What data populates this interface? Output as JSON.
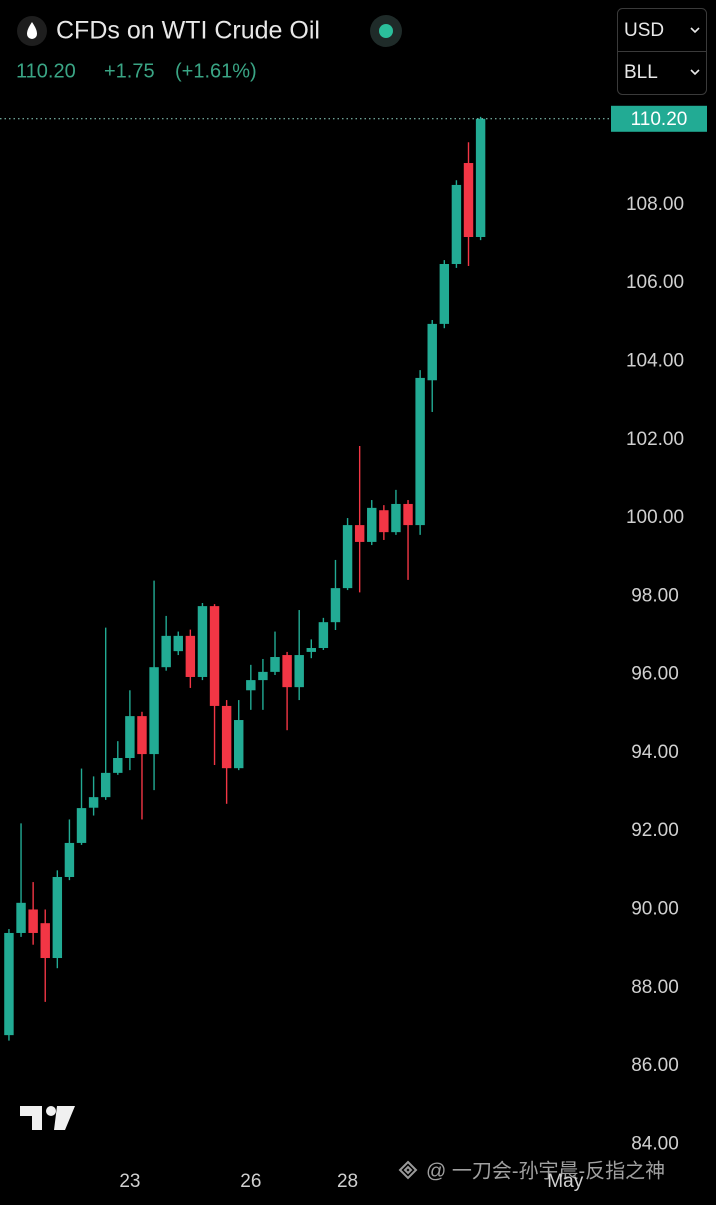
{
  "chart_data": {
    "type": "candlestick",
    "title": "CFDs on WTI Crude Oil",
    "price": "110.20",
    "change": "+1.75",
    "change_percent": "(+1.61%)",
    "currency": "USD",
    "unit": "BLL",
    "watermark": "@ 一刀会-孙宇晨-反指之神",
    "last_price": {
      "value": 110.2,
      "label": "110.20"
    },
    "up_color": "#22ab94",
    "down_color": "#f23645",
    "open": [
      86.79,
      89.4,
      90.0,
      89.65,
      88.76,
      90.83,
      91.7,
      92.6,
      92.87,
      93.49,
      93.87,
      94.94,
      93.97,
      96.19,
      96.6,
      96.99,
      95.94,
      97.75,
      95.2,
      93.61,
      95.6,
      95.86,
      96.07,
      96.5,
      95.68,
      96.58,
      96.68,
      97.34,
      98.21,
      99.82,
      99.39,
      100.2,
      99.64,
      100.36,
      99.82,
      103.52,
      104.96,
      106.49,
      109.07,
      107.18
    ],
    "high": [
      89.5,
      92.2,
      90.7,
      90.0,
      91.0,
      92.3,
      93.6,
      93.4,
      97.2,
      94.3,
      95.6,
      95.05,
      98.4,
      97.5,
      97.1,
      97.15,
      97.83,
      97.8,
      95.35,
      95.35,
      96.25,
      96.4,
      97.1,
      96.58,
      97.65,
      96.9,
      97.45,
      98.93,
      100.0,
      101.84,
      100.46,
      100.33,
      100.72,
      100.46,
      103.78,
      105.06,
      106.59,
      108.63,
      109.6,
      110.25
    ],
    "low": [
      86.65,
      89.3,
      89.1,
      87.64,
      88.5,
      90.75,
      91.65,
      92.4,
      92.8,
      93.44,
      93.56,
      92.3,
      93.05,
      96.1,
      96.5,
      95.66,
      95.86,
      93.69,
      92.7,
      93.56,
      95.1,
      95.1,
      95.99,
      94.58,
      95.35,
      96.42,
      96.63,
      97.14,
      98.16,
      98.1,
      99.31,
      99.44,
      99.57,
      98.42,
      99.57,
      102.71,
      104.85,
      106.39,
      106.44,
      107.1
    ],
    "close": [
      89.4,
      90.17,
      89.4,
      88.76,
      90.83,
      91.7,
      92.59,
      92.87,
      93.49,
      93.87,
      94.94,
      93.97,
      96.19,
      96.99,
      96.99,
      95.94,
      97.75,
      95.2,
      93.61,
      94.84,
      95.86,
      96.07,
      96.45,
      95.68,
      96.5,
      96.68,
      97.34,
      98.21,
      99.82,
      99.39,
      100.26,
      99.64,
      100.36,
      99.82,
      103.58,
      104.96,
      106.49,
      108.51,
      107.18,
      110.2
    ],
    "xlim": [
      -0.74,
      49.7
    ],
    "xticks": [
      {
        "value": 10,
        "label": "23"
      },
      {
        "value": 20,
        "label": "26"
      },
      {
        "value": 28,
        "label": "28"
      },
      {
        "value": 46,
        "label": "May"
      }
    ],
    "ylim": [
      83.6,
      110.68
    ],
    "yticks": [
      {
        "value": 84,
        "label": "84.00"
      },
      {
        "value": 86,
        "label": "86.00"
      },
      {
        "value": 88,
        "label": "88.00"
      },
      {
        "value": 90,
        "label": "90.00"
      },
      {
        "value": 92,
        "label": "92.00"
      },
      {
        "value": 94,
        "label": "94.00"
      },
      {
        "value": 96,
        "label": "96.00"
      },
      {
        "value": 98,
        "label": "98.00"
      },
      {
        "value": 100,
        "label": "100.00"
      },
      {
        "value": 102,
        "label": "102.00"
      },
      {
        "value": 104,
        "label": "104.00"
      },
      {
        "value": 106,
        "label": "106.00"
      },
      {
        "value": 108,
        "label": "108.00"
      }
    ]
  }
}
